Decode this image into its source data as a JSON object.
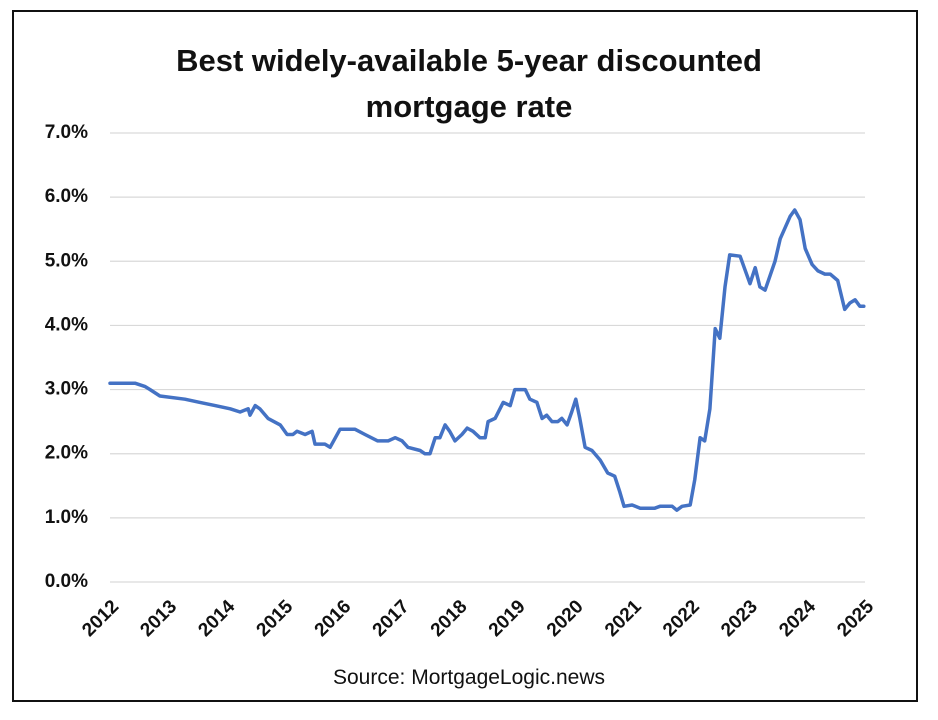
{
  "chart_data": {
    "type": "line",
    "title": "Best widely-available 5-year discounted mortgage rate",
    "source": "Source: MortgageLogic.news",
    "xlim": [
      2012,
      2025
    ],
    "xticks": [
      2012,
      2013,
      2014,
      2015,
      2016,
      2017,
      2018,
      2019,
      2020,
      2021,
      2022,
      2023,
      2024,
      2025
    ],
    "ylim": [
      0,
      7
    ],
    "yticks": [
      {
        "value": 0,
        "label": "0.0%"
      },
      {
        "value": 1,
        "label": "1.0%"
      },
      {
        "value": 2,
        "label": "2.0%"
      },
      {
        "value": 3,
        "label": "3.0%"
      },
      {
        "value": 4,
        "label": "4.0%"
      },
      {
        "value": 5,
        "label": "5.0%"
      },
      {
        "value": 6,
        "label": "6.0%"
      },
      {
        "value": 7,
        "label": "7.0%"
      }
    ],
    "grid": true,
    "series": [
      {
        "color": "#4472c4",
        "x": [
          2012.0,
          2012.43,
          2012.6,
          2012.69,
          2012.86,
          2013.29,
          2013.55,
          2013.81,
          2014.07,
          2014.24,
          2014.38,
          2014.41,
          2014.5,
          2014.58,
          2014.72,
          2014.93,
          2015.05,
          2015.15,
          2015.22,
          2015.36,
          2015.48,
          2015.53,
          2015.7,
          2015.79,
          2015.96,
          2016.22,
          2016.39,
          2016.61,
          2016.79,
          2016.91,
          2017.03,
          2017.13,
          2017.34,
          2017.42,
          2017.51,
          2017.6,
          2017.68,
          2017.77,
          2017.85,
          2017.94,
          2018.06,
          2018.15,
          2018.25,
          2018.37,
          2018.46,
          2018.51,
          2018.63,
          2018.77,
          2018.89,
          2018.97,
          2019.15,
          2019.23,
          2019.35,
          2019.44,
          2019.52,
          2019.61,
          2019.71,
          2019.78,
          2019.87,
          2019.95,
          2020.02,
          2020.09,
          2020.18,
          2020.3,
          2020.44,
          2020.57,
          2020.69,
          2020.78,
          2020.85,
          2020.99,
          2021.13,
          2021.38,
          2021.47,
          2021.68,
          2021.76,
          2021.85,
          2021.99,
          2022.07,
          2022.16,
          2022.24,
          2022.33,
          2022.42,
          2022.5,
          2022.59,
          2022.67,
          2022.85,
          2023.02,
          2023.11,
          2023.19,
          2023.28,
          2023.45,
          2023.54,
          2023.71,
          2023.79,
          2023.88,
          2023.97,
          2024.09,
          2024.19,
          2024.31,
          2024.4,
          2024.53,
          2024.65,
          2024.74,
          2024.83,
          2024.91,
          2024.98
        ],
        "values": [
          3.1,
          3.1,
          3.05,
          3.0,
          2.9,
          2.85,
          2.8,
          2.75,
          2.7,
          2.65,
          2.7,
          2.6,
          2.75,
          2.7,
          2.55,
          2.45,
          2.3,
          2.3,
          2.35,
          2.3,
          2.35,
          2.15,
          2.15,
          2.1,
          2.38,
          2.38,
          2.3,
          2.2,
          2.2,
          2.25,
          2.2,
          2.1,
          2.05,
          2.0,
          2.0,
          2.25,
          2.25,
          2.45,
          2.35,
          2.2,
          2.3,
          2.4,
          2.35,
          2.25,
          2.25,
          2.5,
          2.55,
          2.8,
          2.75,
          3.0,
          3.0,
          2.85,
          2.8,
          2.55,
          2.6,
          2.5,
          2.5,
          2.55,
          2.45,
          2.65,
          2.85,
          2.55,
          2.1,
          2.05,
          1.9,
          1.7,
          1.65,
          1.4,
          1.18,
          1.2,
          1.15,
          1.15,
          1.18,
          1.18,
          1.12,
          1.18,
          1.2,
          1.6,
          2.25,
          2.2,
          2.7,
          3.95,
          3.8,
          4.6,
          5.1,
          5.08,
          4.65,
          4.9,
          4.6,
          4.55,
          5.0,
          5.35,
          5.7,
          5.8,
          5.65,
          5.2,
          4.95,
          4.85,
          4.8,
          4.8,
          4.7,
          4.25,
          4.35,
          4.4,
          4.3,
          4.3
        ]
      }
    ]
  }
}
